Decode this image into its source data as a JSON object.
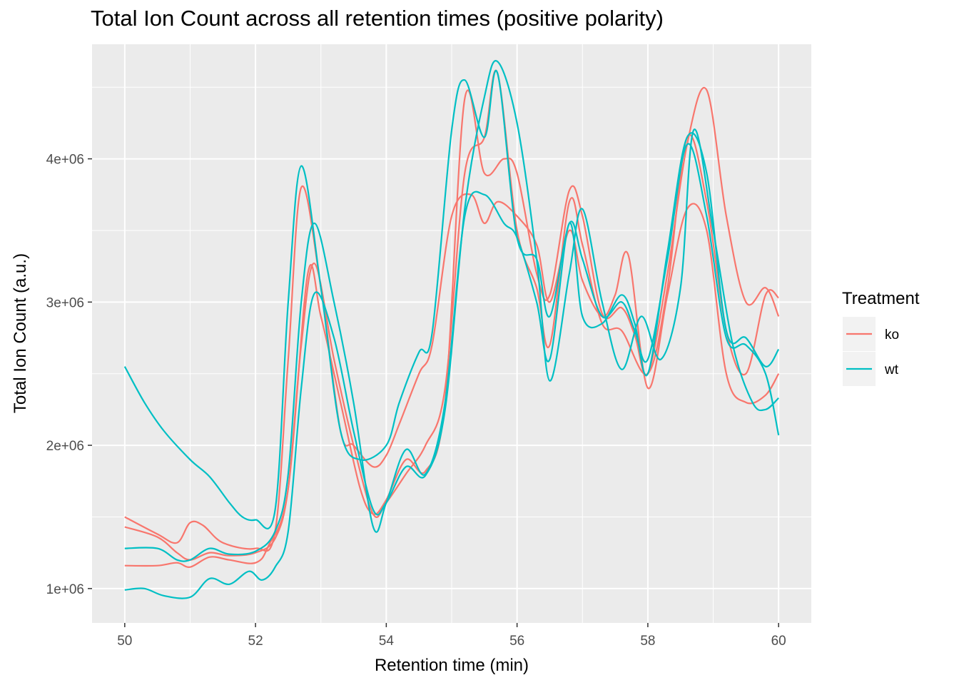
{
  "chart_data": {
    "type": "line",
    "title": "Total Ion Count across all retention times (positive polarity)",
    "xlabel": "Retention time (min)",
    "ylabel": "Total Ion Count (a.u.)",
    "xlim": [
      49.5,
      60.5
    ],
    "ylim": [
      760000,
      4800000
    ],
    "x_ticks": [
      50,
      52,
      54,
      56,
      58,
      60
    ],
    "x_tick_labels": [
      "50",
      "52",
      "54",
      "56",
      "58",
      "60"
    ],
    "y_ticks": [
      1000000,
      2000000,
      3000000,
      4000000
    ],
    "y_tick_labels": [
      "1e+06",
      "2e+06",
      "3e+06",
      "4e+06"
    ],
    "grid": true,
    "legend": {
      "title": "Treatment",
      "position": "right",
      "entries": [
        {
          "label": "ko",
          "color": "#F8766D"
        },
        {
          "label": "wt",
          "color": "#00BFC4"
        }
      ]
    },
    "series": [
      {
        "group": "ko",
        "color": "#F8766D",
        "points": [
          [
            50,
            1500000
          ],
          [
            50.5,
            1380000
          ],
          [
            50.8,
            1320000
          ],
          [
            51.0,
            1460000
          ],
          [
            51.2,
            1440000
          ],
          [
            51.5,
            1320000
          ],
          [
            52.0,
            1280000
          ],
          [
            52.3,
            1400000
          ],
          [
            52.5,
            2600000
          ],
          [
            52.7,
            3800000
          ],
          [
            53.0,
            3100000
          ],
          [
            53.3,
            2100000
          ],
          [
            53.5,
            2000000
          ],
          [
            53.8,
            1850000
          ],
          [
            54.0,
            1930000
          ],
          [
            54.2,
            2150000
          ],
          [
            54.5,
            2500000
          ],
          [
            54.7,
            2700000
          ],
          [
            55.0,
            3600000
          ],
          [
            55.3,
            3750000
          ],
          [
            55.5,
            3550000
          ],
          [
            55.7,
            3700000
          ],
          [
            56.0,
            3600000
          ],
          [
            56.3,
            3400000
          ],
          [
            56.5,
            3000000
          ],
          [
            56.8,
            3500000
          ],
          [
            57.0,
            3150000
          ],
          [
            57.3,
            2900000
          ],
          [
            57.5,
            3050000
          ],
          [
            57.7,
            3330000
          ],
          [
            58.0,
            2400000
          ],
          [
            58.3,
            3050000
          ],
          [
            58.6,
            3650000
          ],
          [
            58.9,
            3500000
          ],
          [
            59.2,
            2500000
          ],
          [
            59.5,
            2300000
          ],
          [
            59.8,
            2350000
          ],
          [
            60.0,
            2500000
          ]
        ]
      },
      {
        "group": "ko",
        "color": "#F8766D",
        "points": [
          [
            50,
            1430000
          ],
          [
            50.5,
            1360000
          ],
          [
            50.8,
            1250000
          ],
          [
            51.0,
            1200000
          ],
          [
            51.3,
            1250000
          ],
          [
            51.6,
            1230000
          ],
          [
            52.0,
            1250000
          ],
          [
            52.3,
            1350000
          ],
          [
            52.5,
            1700000
          ],
          [
            52.7,
            2700000
          ],
          [
            52.9,
            3270000
          ],
          [
            53.2,
            2600000
          ],
          [
            53.5,
            2000000
          ],
          [
            53.8,
            1520000
          ],
          [
            54.0,
            1600000
          ],
          [
            54.3,
            1800000
          ],
          [
            54.6,
            2000000
          ],
          [
            54.9,
            2400000
          ],
          [
            55.2,
            3900000
          ],
          [
            55.5,
            4150000
          ],
          [
            55.7,
            4600000
          ],
          [
            56.0,
            3500000
          ],
          [
            56.3,
            3100000
          ],
          [
            56.5,
            2700000
          ],
          [
            56.8,
            3700000
          ],
          [
            57.0,
            3400000
          ],
          [
            57.3,
            2850000
          ],
          [
            57.6,
            2800000
          ],
          [
            58.0,
            2500000
          ],
          [
            58.3,
            3100000
          ],
          [
            58.6,
            4150000
          ],
          [
            58.9,
            3700000
          ],
          [
            59.2,
            2800000
          ],
          [
            59.5,
            2500000
          ],
          [
            59.8,
            3050000
          ],
          [
            60.0,
            3030000
          ]
        ]
      },
      {
        "group": "ko",
        "color": "#F8766D",
        "points": [
          [
            50,
            1160000
          ],
          [
            50.5,
            1160000
          ],
          [
            50.8,
            1180000
          ],
          [
            51.0,
            1150000
          ],
          [
            51.3,
            1220000
          ],
          [
            51.6,
            1200000
          ],
          [
            52.0,
            1180000
          ],
          [
            52.2,
            1300000
          ],
          [
            52.5,
            1700000
          ],
          [
            52.8,
            3200000
          ],
          [
            53.0,
            2900000
          ],
          [
            53.3,
            2300000
          ],
          [
            53.6,
            1700000
          ],
          [
            53.8,
            1520000
          ],
          [
            54.0,
            1620000
          ],
          [
            54.3,
            1900000
          ],
          [
            54.6,
            1820000
          ],
          [
            54.9,
            2300000
          ],
          [
            55.2,
            4420000
          ],
          [
            55.5,
            3900000
          ],
          [
            55.8,
            4000000
          ],
          [
            56.0,
            3900000
          ],
          [
            56.3,
            3200000
          ],
          [
            56.5,
            3050000
          ],
          [
            56.8,
            3780000
          ],
          [
            57.0,
            3600000
          ],
          [
            57.3,
            2920000
          ],
          [
            57.6,
            2960000
          ],
          [
            57.8,
            2770000
          ],
          [
            58.0,
            2500000
          ],
          [
            58.3,
            3200000
          ],
          [
            58.6,
            4100000
          ],
          [
            58.9,
            4480000
          ],
          [
            59.2,
            3600000
          ],
          [
            59.5,
            3000000
          ],
          [
            59.8,
            3100000
          ],
          [
            60.0,
            2900000
          ]
        ]
      },
      {
        "group": "wt",
        "color": "#00BFC4",
        "points": [
          [
            50,
            2550000
          ],
          [
            50.3,
            2300000
          ],
          [
            50.6,
            2100000
          ],
          [
            51.0,
            1900000
          ],
          [
            51.3,
            1780000
          ],
          [
            51.6,
            1600000
          ],
          [
            51.8,
            1500000
          ],
          [
            52.0,
            1480000
          ],
          [
            52.3,
            1550000
          ],
          [
            52.5,
            3000000
          ],
          [
            52.7,
            3950000
          ],
          [
            53.0,
            3100000
          ],
          [
            53.3,
            2100000
          ],
          [
            53.6,
            1900000
          ],
          [
            54.0,
            2000000
          ],
          [
            54.2,
            2300000
          ],
          [
            54.5,
            2650000
          ],
          [
            54.7,
            2780000
          ],
          [
            55.0,
            4200000
          ],
          [
            55.2,
            4550000
          ],
          [
            55.5,
            4150000
          ],
          [
            55.7,
            4600000
          ],
          [
            56.0,
            3450000
          ],
          [
            56.3,
            3300000
          ],
          [
            56.5,
            2900000
          ],
          [
            56.8,
            3550000
          ],
          [
            57.0,
            3300000
          ],
          [
            57.3,
            2900000
          ],
          [
            57.6,
            3000000
          ],
          [
            57.8,
            2800000
          ],
          [
            58.0,
            2600000
          ],
          [
            58.3,
            3300000
          ],
          [
            58.6,
            4100000
          ],
          [
            58.9,
            3600000
          ],
          [
            59.2,
            2750000
          ],
          [
            59.5,
            2700000
          ],
          [
            59.8,
            2500000
          ],
          [
            60.0,
            2070000
          ]
        ]
      },
      {
        "group": "wt",
        "color": "#00BFC4",
        "points": [
          [
            50,
            1280000
          ],
          [
            50.5,
            1280000
          ],
          [
            50.8,
            1200000
          ],
          [
            51.0,
            1200000
          ],
          [
            51.3,
            1280000
          ],
          [
            51.6,
            1240000
          ],
          [
            52.0,
            1260000
          ],
          [
            52.3,
            1400000
          ],
          [
            52.5,
            1800000
          ],
          [
            52.7,
            3000000
          ],
          [
            52.9,
            3550000
          ],
          [
            53.2,
            3000000
          ],
          [
            53.5,
            2300000
          ],
          [
            53.8,
            1430000
          ],
          [
            54.0,
            1600000
          ],
          [
            54.3,
            1970000
          ],
          [
            54.6,
            1800000
          ],
          [
            54.9,
            2300000
          ],
          [
            55.2,
            3600000
          ],
          [
            55.5,
            3750000
          ],
          [
            55.8,
            3550000
          ],
          [
            56.0,
            3450000
          ],
          [
            56.3,
            3000000
          ],
          [
            56.5,
            2600000
          ],
          [
            56.8,
            3550000
          ],
          [
            57.0,
            2900000
          ],
          [
            57.3,
            2850000
          ],
          [
            57.6,
            3050000
          ],
          [
            57.8,
            2850000
          ],
          [
            58.0,
            2500000
          ],
          [
            58.3,
            3350000
          ],
          [
            58.6,
            4150000
          ],
          [
            58.9,
            3900000
          ],
          [
            59.2,
            2800000
          ],
          [
            59.5,
            2750000
          ],
          [
            59.8,
            2550000
          ],
          [
            60.0,
            2670000
          ]
        ]
      },
      {
        "group": "wt",
        "color": "#00BFC4",
        "points": [
          [
            50,
            990000
          ],
          [
            50.3,
            1000000
          ],
          [
            50.6,
            950000
          ],
          [
            51.0,
            940000
          ],
          [
            51.3,
            1070000
          ],
          [
            51.6,
            1030000
          ],
          [
            51.9,
            1120000
          ],
          [
            52.1,
            1060000
          ],
          [
            52.3,
            1150000
          ],
          [
            52.5,
            1400000
          ],
          [
            52.7,
            2400000
          ],
          [
            52.9,
            3060000
          ],
          [
            53.2,
            2750000
          ],
          [
            53.5,
            2100000
          ],
          [
            53.8,
            1550000
          ],
          [
            54.0,
            1600000
          ],
          [
            54.3,
            1850000
          ],
          [
            54.6,
            1790000
          ],
          [
            54.9,
            2250000
          ],
          [
            55.2,
            3650000
          ],
          [
            55.5,
            4430000
          ],
          [
            55.7,
            4680000
          ],
          [
            56.0,
            4250000
          ],
          [
            56.3,
            3300000
          ],
          [
            56.5,
            2450000
          ],
          [
            56.8,
            3200000
          ],
          [
            57.0,
            3650000
          ],
          [
            57.3,
            3000000
          ],
          [
            57.6,
            2530000
          ],
          [
            57.9,
            2900000
          ],
          [
            58.2,
            2600000
          ],
          [
            58.5,
            3100000
          ],
          [
            58.7,
            4200000
          ],
          [
            59.0,
            3500000
          ],
          [
            59.3,
            2700000
          ],
          [
            59.6,
            2300000
          ],
          [
            59.8,
            2250000
          ],
          [
            60.0,
            2330000
          ]
        ]
      }
    ]
  }
}
